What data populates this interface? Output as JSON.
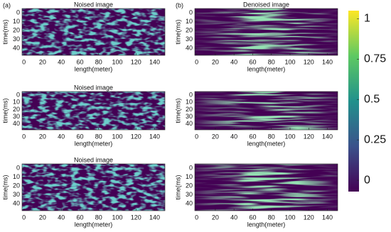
{
  "chart_data": [
    {
      "type": "heatmap",
      "panel_label": "(a)",
      "title": "Noised image",
      "style": "noise",
      "xlabel": "length(meter)",
      "ylabel": "time(ms)",
      "xlim": [
        -2,
        151
      ],
      "xticks": [
        0,
        20,
        40,
        60,
        80,
        100,
        120,
        140
      ],
      "ylim": [
        -5,
        48
      ],
      "yticks": [
        0,
        10,
        20,
        30,
        40
      ]
    },
    {
      "type": "heatmap",
      "panel_label": "(b)",
      "title": "Denoised image",
      "style": "denoised",
      "xlabel": "length(meter)",
      "ylabel": "time(ms)",
      "xlim": [
        -2,
        151
      ],
      "xticks": [
        0,
        20,
        40,
        60,
        80,
        100,
        120,
        140
      ],
      "ylim": [
        -5,
        48
      ],
      "yticks": [
        0,
        10,
        20,
        30,
        40
      ]
    },
    {
      "type": "heatmap",
      "title": "Noised image",
      "style": "noise",
      "xlabel": "length(meter)",
      "ylabel": "time(ms)",
      "xlim": [
        -2,
        151
      ],
      "xticks": [
        0,
        20,
        40,
        60,
        80,
        100,
        120,
        140
      ],
      "ylim": [
        -5,
        48
      ],
      "yticks": [
        0,
        10,
        20,
        30,
        40
      ]
    },
    {
      "type": "heatmap",
      "style": "denoised",
      "xlabel": "length(meter)",
      "ylabel": "time(ms)",
      "xlim": [
        -2,
        151
      ],
      "xticks": [
        0,
        20,
        40,
        60,
        80,
        100,
        120,
        140
      ],
      "ylim": [
        -5,
        48
      ],
      "yticks": [
        0,
        10,
        20,
        30,
        40
      ]
    },
    {
      "type": "heatmap",
      "title": "Noised image",
      "style": "noise",
      "xlabel": "length(meter)",
      "ylabel": "time(ms)",
      "xlim": [
        -2,
        151
      ],
      "xticks": [
        0,
        20,
        40,
        60,
        80,
        100,
        120,
        140
      ],
      "ylim": [
        -5,
        48
      ],
      "yticks": [
        0,
        10,
        20,
        30,
        40
      ]
    },
    {
      "type": "heatmap",
      "style": "denoised",
      "xlabel": "length(meter)",
      "ylabel": "time(ms)",
      "xlim": [
        -2,
        151
      ],
      "xticks": [
        0,
        20,
        40,
        60,
        80,
        100,
        120,
        140
      ],
      "ylim": [
        -5,
        48
      ],
      "yticks": [
        0,
        10,
        20,
        30,
        40
      ]
    }
  ],
  "colorbar": {
    "lim": [
      -0.07,
      1.05
    ],
    "ticks": [
      0,
      0.25,
      0.5,
      0.75,
      1
    ]
  }
}
